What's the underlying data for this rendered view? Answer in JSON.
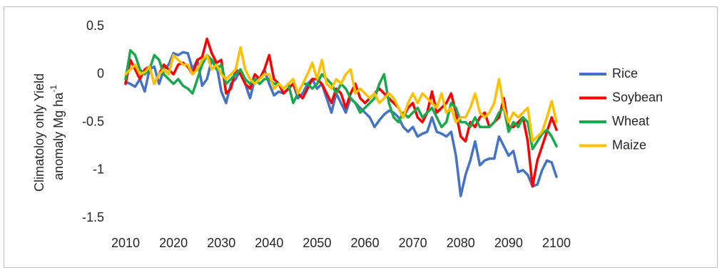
{
  "chart_data": {
    "type": "line",
    "ylabel_lines": [
      "Climatoloy only Yield",
      "anomaly Mg ha"
    ],
    "ylabel_superscript": "-1",
    "x": [
      2010,
      2011,
      2012,
      2013,
      2014,
      2015,
      2016,
      2017,
      2018,
      2019,
      2020,
      2021,
      2022,
      2023,
      2024,
      2025,
      2026,
      2027,
      2028,
      2029,
      2030,
      2031,
      2032,
      2033,
      2034,
      2035,
      2036,
      2037,
      2038,
      2039,
      2040,
      2041,
      2042,
      2043,
      2044,
      2045,
      2046,
      2047,
      2048,
      2049,
      2050,
      2051,
      2052,
      2053,
      2054,
      2055,
      2056,
      2057,
      2058,
      2059,
      2060,
      2061,
      2062,
      2063,
      2064,
      2065,
      2066,
      2067,
      2068,
      2069,
      2070,
      2071,
      2072,
      2073,
      2074,
      2075,
      2076,
      2077,
      2078,
      2079,
      2080,
      2081,
      2082,
      2083,
      2084,
      2085,
      2086,
      2087,
      2088,
      2089,
      2090,
      2091,
      2092,
      2093,
      2094,
      2095,
      2096,
      2097,
      2098,
      2099,
      2100
    ],
    "xlim": [
      2010,
      2100
    ],
    "xticks": [
      2010,
      2020,
      2030,
      2040,
      2050,
      2060,
      2070,
      2080,
      2090,
      2100
    ],
    "ylim": [
      -1.5,
      0.5
    ],
    "yticks": [
      0.5,
      0,
      -0.5,
      -1,
      -1.5
    ],
    "grid": false,
    "legend": "right",
    "series": [
      {
        "name": "Rice",
        "color": "#4472c4",
        "values": [
          -0.08,
          -0.1,
          -0.13,
          -0.05,
          -0.18,
          0.05,
          0.08,
          -0.1,
          0.05,
          0.1,
          0.22,
          0.2,
          0.23,
          0.22,
          0.05,
          0.15,
          -0.12,
          -0.05,
          0.15,
          0.1,
          -0.18,
          -0.3,
          -0.1,
          -0.05,
          0.05,
          -0.1,
          -0.25,
          -0.05,
          -0.05,
          0.05,
          -0.1,
          -0.22,
          -0.18,
          -0.2,
          -0.15,
          -0.1,
          -0.25,
          -0.2,
          -0.1,
          -0.05,
          -0.15,
          -0.1,
          -0.25,
          -0.4,
          -0.2,
          -0.3,
          -0.4,
          -0.25,
          -0.3,
          -0.35,
          -0.4,
          -0.45,
          -0.55,
          -0.48,
          -0.42,
          -0.38,
          -0.4,
          -0.45,
          -0.55,
          -0.6,
          -0.55,
          -0.65,
          -0.62,
          -0.6,
          -0.45,
          -0.6,
          -0.62,
          -0.65,
          -0.6,
          -0.85,
          -1.27,
          -1.05,
          -0.9,
          -0.7,
          -0.95,
          -0.9,
          -0.88,
          -0.88,
          -0.65,
          -0.75,
          -0.85,
          -0.8,
          -1.02,
          -1.0,
          -1.05,
          -1.17,
          -1.15,
          -1.0,
          -0.9,
          -0.92,
          -1.07
        ]
      },
      {
        "name": "Soybean",
        "color": "#ff0000",
        "values": [
          -0.1,
          0.15,
          0.05,
          -0.05,
          0.05,
          0.08,
          -0.1,
          0.0,
          0.1,
          0.05,
          0.0,
          0.1,
          0.12,
          0.08,
          0.0,
          0.15,
          0.18,
          0.37,
          0.22,
          0.12,
          0.15,
          -0.2,
          -0.15,
          0.05,
          0.0,
          -0.1,
          -0.15,
          0.0,
          -0.05,
          0.05,
          0.2,
          -0.05,
          -0.1,
          -0.2,
          -0.15,
          -0.1,
          -0.2,
          -0.25,
          -0.15,
          -0.05,
          -0.05,
          -0.1,
          -0.2,
          -0.3,
          -0.15,
          -0.2,
          -0.35,
          -0.2,
          -0.1,
          -0.25,
          -0.3,
          -0.25,
          -0.2,
          -0.15,
          -0.2,
          -0.25,
          -0.3,
          -0.35,
          -0.45,
          -0.35,
          -0.3,
          -0.45,
          -0.5,
          -0.4,
          -0.18,
          -0.4,
          -0.35,
          -0.3,
          -0.2,
          -0.4,
          -0.65,
          -0.7,
          -0.5,
          -0.55,
          -0.45,
          -0.4,
          -0.55,
          -0.5,
          -0.45,
          -0.25,
          -0.55,
          -0.55,
          -0.5,
          -0.45,
          -0.7,
          -1.17,
          -0.9,
          -0.75,
          -0.6,
          -0.45,
          -0.58
        ]
      },
      {
        "name": "Wheat",
        "color": "#19a84b",
        "values": [
          -0.05,
          0.25,
          0.2,
          0.05,
          0.0,
          0.05,
          0.2,
          0.15,
          0.0,
          -0.05,
          -0.1,
          -0.05,
          -0.12,
          -0.15,
          -0.2,
          -0.05,
          0.1,
          0.2,
          0.15,
          0.05,
          0.1,
          -0.1,
          -0.05,
          0.0,
          0.05,
          -0.05,
          -0.1,
          -0.05,
          -0.1,
          -0.05,
          -0.05,
          -0.1,
          -0.1,
          -0.15,
          -0.1,
          -0.3,
          -0.2,
          -0.1,
          -0.1,
          -0.15,
          -0.1,
          0.0,
          -0.05,
          -0.1,
          -0.2,
          -0.1,
          -0.15,
          -0.25,
          -0.3,
          -0.4,
          -0.35,
          -0.3,
          -0.25,
          -0.1,
          0.0,
          -0.3,
          -0.45,
          -0.5,
          -0.4,
          -0.45,
          -0.4,
          -0.35,
          -0.45,
          -0.4,
          -0.35,
          -0.45,
          -0.55,
          -0.5,
          -0.3,
          -0.35,
          -0.5,
          -0.5,
          -0.55,
          -0.45,
          -0.55,
          -0.55,
          -0.55,
          -0.5,
          -0.4,
          -0.35,
          -0.6,
          -0.5,
          -0.55,
          -0.45,
          -0.5,
          -0.78,
          -0.7,
          -0.62,
          -0.58,
          -0.65,
          -0.75
        ]
      },
      {
        "name": "Maize",
        "color": "#ffc000",
        "values": [
          0.0,
          0.05,
          0.1,
          0.0,
          0.02,
          0.08,
          -0.1,
          0.0,
          0.05,
          0.0,
          0.2,
          0.15,
          0.1,
          0.1,
          0.0,
          0.05,
          0.15,
          0.2,
          0.05,
          0.1,
          0.0,
          -0.05,
          0.0,
          0.05,
          0.28,
          0.05,
          -0.05,
          -0.1,
          -0.05,
          0.0,
          0.0,
          -0.15,
          -0.1,
          -0.15,
          -0.1,
          -0.05,
          -0.2,
          -0.1,
          0.0,
          0.12,
          -0.05,
          0.15,
          -0.1,
          -0.15,
          -0.05,
          -0.1,
          0.0,
          0.05,
          -0.2,
          -0.15,
          -0.2,
          -0.25,
          -0.2,
          -0.3,
          -0.25,
          -0.2,
          -0.25,
          -0.35,
          -0.45,
          -0.3,
          -0.2,
          -0.3,
          -0.2,
          -0.25,
          -0.3,
          -0.35,
          -0.2,
          -0.4,
          -0.35,
          -0.5,
          -0.45,
          -0.45,
          -0.35,
          -0.2,
          -0.4,
          -0.45,
          -0.4,
          -0.3,
          -0.05,
          -0.35,
          -0.5,
          -0.4,
          -0.45,
          -0.4,
          -0.35,
          -0.7,
          -0.65,
          -0.6,
          -0.45,
          -0.28,
          -0.5
        ]
      }
    ]
  }
}
